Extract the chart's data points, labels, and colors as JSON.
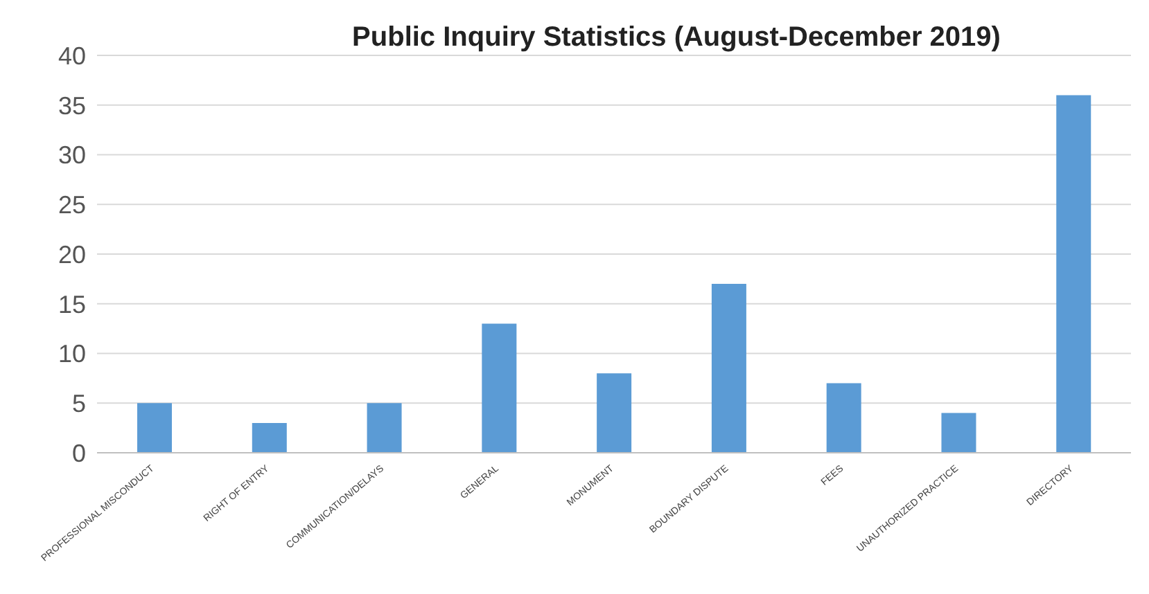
{
  "chart_data": {
    "type": "bar",
    "title": "Public Inquiry Statistics (August-December 2019)",
    "categories": [
      "PROFESSIONAL MISCONDUCT",
      "RIGHT OF ENTRY",
      "COMMUNICATION/DELAYS",
      "GENERAL",
      "MONUMENT",
      "BOUNDARY DISPUTE",
      "FEES",
      "UNAUTHORIZED PRACTICE",
      "DIRECTORY"
    ],
    "values": [
      5,
      3,
      5,
      13,
      8,
      17,
      7,
      4,
      36
    ],
    "color": "#5b9bd5",
    "ylim": [
      0,
      40
    ],
    "yticks": [
      0,
      5,
      10,
      15,
      20,
      25,
      30,
      35,
      40
    ],
    "grid": "y",
    "legend": false
  }
}
